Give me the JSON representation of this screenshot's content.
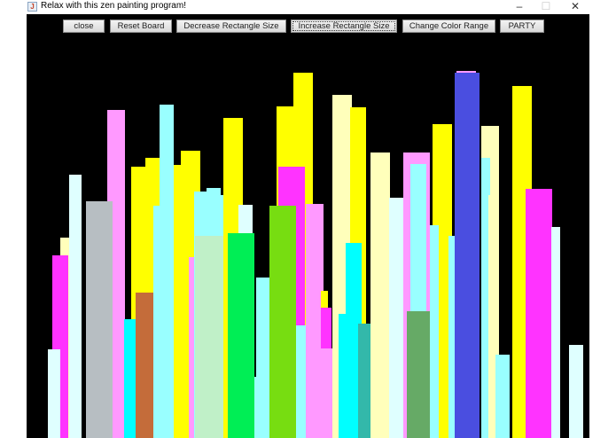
{
  "window": {
    "title": "Relax with this zen painting program!",
    "icon": "java-coffee-icon",
    "controls": {
      "minimize": "–",
      "maximize": "☐",
      "close": "✕"
    }
  },
  "toolbar": {
    "close_label": "close",
    "reset_label": "Reset Board",
    "decrease_label": "Decrease Rectangle Size",
    "increase_label": "Increase Rectangle Size",
    "color_range_label": "Change Color Range",
    "party_label": "PARTY"
  },
  "canvas": {
    "background": "#000000",
    "rectangle_colors": [
      "#ff99ff",
      "#ffff00",
      "#99ffff",
      "#ffffbb",
      "#ff33ff",
      "#00ffff",
      "#b7bec2",
      "#c46c3a",
      "#c0f0c8",
      "#00ee55",
      "#77dd11",
      "#33b8aa",
      "#66aa66",
      "#4a4ee0",
      "#dfffff"
    ]
  }
}
